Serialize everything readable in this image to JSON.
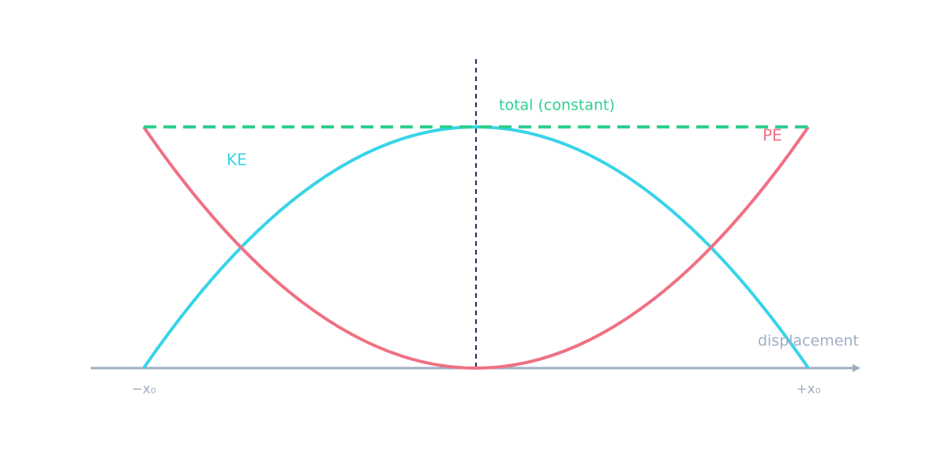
{
  "labels": {
    "total": "total (constant)",
    "ke": "KE",
    "pe": "PE",
    "axis": "displacement"
  },
  "ticks": {
    "left": "−x₀",
    "right": "+x₀"
  }
}
